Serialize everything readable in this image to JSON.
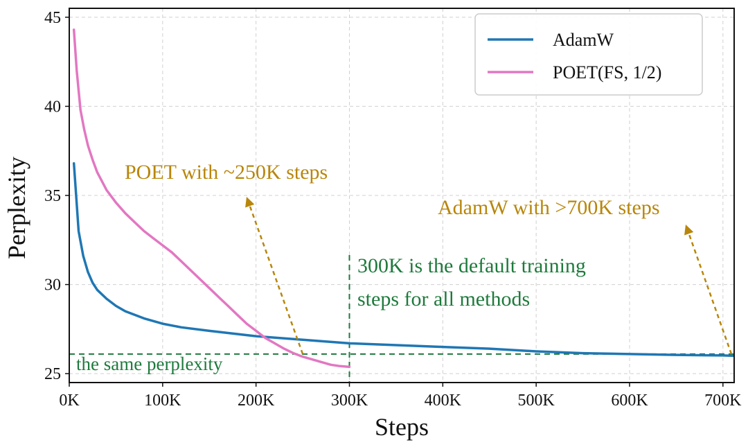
{
  "chart_data": {
    "type": "line",
    "xlabel": "Steps",
    "ylabel": "Perplexity",
    "xlim": [
      0,
      712000
    ],
    "ylim": [
      24.5,
      45.5
    ],
    "x_ticks": [
      0,
      100000,
      200000,
      300000,
      400000,
      500000,
      600000,
      700000
    ],
    "x_tick_labels": [
      "0K",
      "100K",
      "200K",
      "300K",
      "400K",
      "500K",
      "600K",
      "700K"
    ],
    "y_ticks": [
      25,
      30,
      35,
      40,
      45
    ],
    "y_tick_labels": [
      "25",
      "30",
      "35",
      "40",
      "45"
    ],
    "grid": true,
    "legend_position": "top-right",
    "colors": {
      "adamw": "#1f77b4",
      "poet": "#e377c2",
      "annotation": "#b8860b",
      "reference": "#1e7a3c"
    },
    "series": [
      {
        "name": "AdamW",
        "color": "#1f77b4",
        "x": [
          5000,
          10000,
          15000,
          20000,
          25000,
          30000,
          40000,
          50000,
          60000,
          70000,
          80000,
          100000,
          120000,
          150000,
          200000,
          250000,
          300000,
          350000,
          400000,
          450000,
          500000,
          550000,
          600000,
          650000,
          700000,
          712000
        ],
        "y": [
          36.8,
          33.0,
          31.6,
          30.7,
          30.1,
          29.7,
          29.2,
          28.8,
          28.5,
          28.3,
          28.1,
          27.8,
          27.6,
          27.4,
          27.1,
          26.9,
          26.7,
          26.6,
          26.5,
          26.4,
          26.25,
          26.15,
          26.1,
          26.05,
          26.02,
          26.0
        ]
      },
      {
        "name": "POET(FS, 1/2)",
        "color": "#e377c2",
        "x": [
          5000,
          8000,
          12000,
          16000,
          20000,
          25000,
          30000,
          40000,
          50000,
          60000,
          70000,
          80000,
          90000,
          100000,
          110000,
          120000,
          130000,
          140000,
          150000,
          160000,
          170000,
          180000,
          190000,
          200000,
          210000,
          220000,
          230000,
          240000,
          250000,
          260000,
          270000,
          280000,
          290000,
          300000
        ],
        "y": [
          44.3,
          42.0,
          39.8,
          38.7,
          37.8,
          37.0,
          36.3,
          35.3,
          34.6,
          34.0,
          33.5,
          33.0,
          32.6,
          32.2,
          31.8,
          31.3,
          30.8,
          30.3,
          29.8,
          29.3,
          28.8,
          28.3,
          27.8,
          27.4,
          27.0,
          26.7,
          26.4,
          26.15,
          25.95,
          25.8,
          25.65,
          25.5,
          25.42,
          25.38
        ]
      }
    ],
    "reference_lines": {
      "horizontal_y": 26.1,
      "vertical_x": 300000
    },
    "annotations": {
      "poet_steps": "POET with ~250K steps",
      "adamw_steps": "AdamW with >700K steps",
      "default_steps_line1": "300K is the default training",
      "default_steps_line2": "steps for all methods",
      "same_perplexity": "the same perplexity"
    }
  }
}
